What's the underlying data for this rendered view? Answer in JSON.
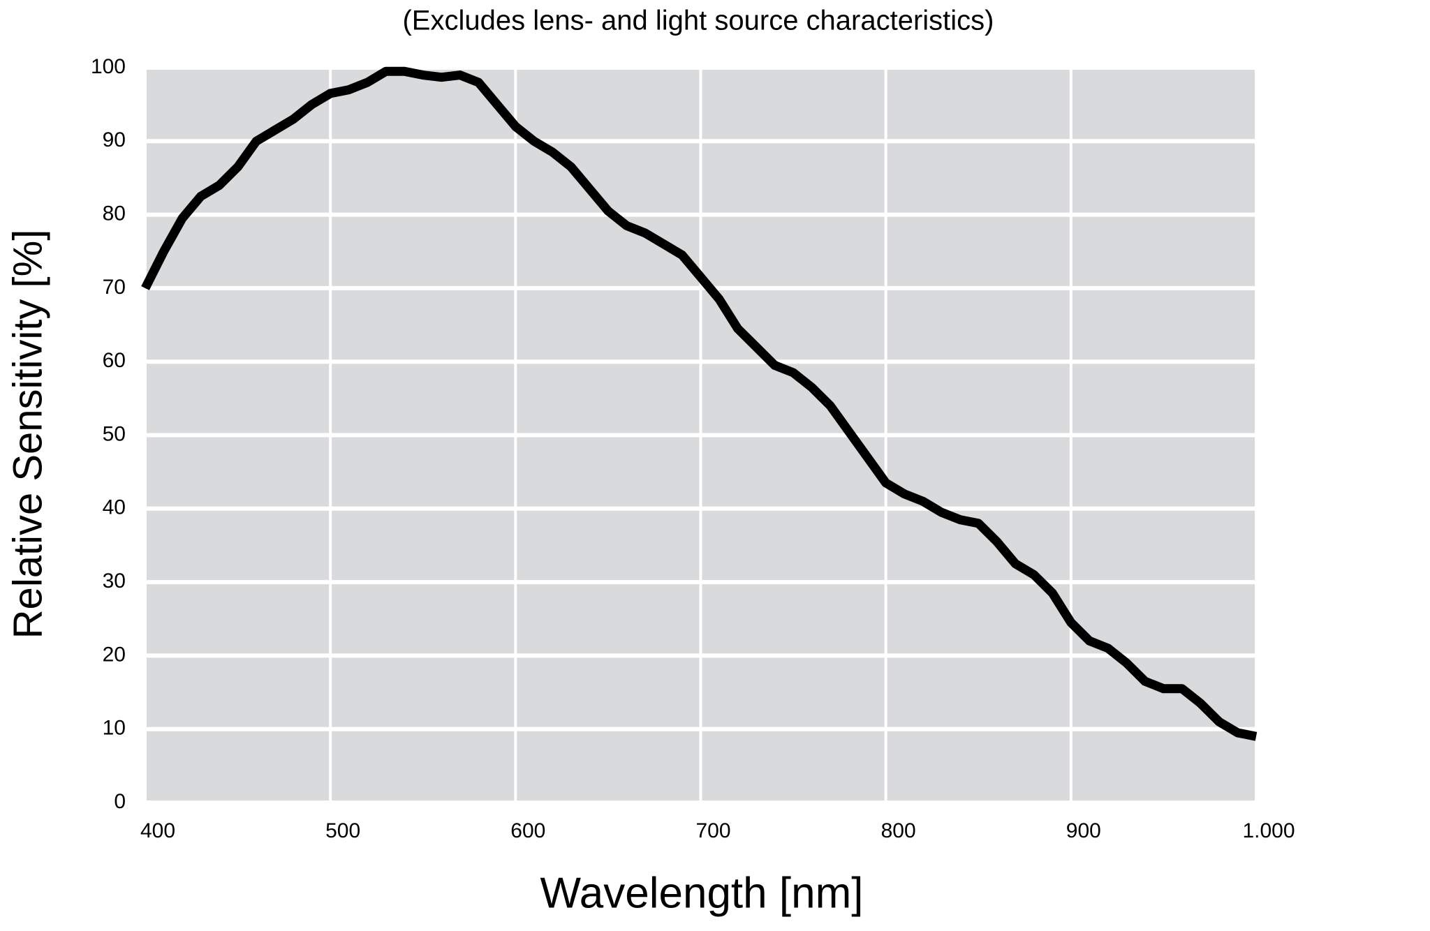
{
  "chart_data": {
    "type": "line",
    "title": "(Excludes lens- and light source characteristics)",
    "x_label": "Wavelength [nm]",
    "y_label": "Relative Sensitivity [%]",
    "x": [
      400,
      410,
      420,
      430,
      440,
      450,
      460,
      470,
      480,
      490,
      500,
      510,
      520,
      530,
      540,
      550,
      560,
      570,
      580,
      590,
      600,
      610,
      620,
      630,
      640,
      650,
      660,
      670,
      680,
      690,
      700,
      710,
      720,
      730,
      740,
      750,
      760,
      770,
      780,
      790,
      800,
      810,
      820,
      830,
      840,
      850,
      860,
      870,
      880,
      890,
      900,
      910,
      920,
      930,
      940,
      950,
      960,
      970,
      980,
      990,
      1000
    ],
    "series": [
      {
        "color": "#000000",
        "values": [
          70,
          75,
          79.5,
          82.5,
          84,
          86.5,
          90,
          91.5,
          93,
          95,
          96.5,
          97,
          98,
          99.5,
          99.5,
          99,
          98.7,
          99,
          98,
          95,
          92,
          90,
          88.5,
          86.5,
          83.5,
          80.5,
          78.5,
          77.5,
          76,
          74.5,
          71.5,
          68.5,
          64.5,
          62,
          59.5,
          58.5,
          56.5,
          54,
          50.5,
          47,
          43.5,
          42,
          41,
          39.5,
          38.5,
          38,
          35.5,
          32.5,
          31,
          28.5,
          24.5,
          22,
          21,
          19,
          16.5,
          15.5,
          15.5,
          13.5,
          11,
          9.5,
          9
        ]
      }
    ],
    "xlim": [
      400,
      1000
    ],
    "ylim": [
      0,
      100
    ],
    "xticks": [
      400,
      500,
      600,
      700,
      800,
      900,
      {
        "value": 1000,
        "label": "1.000"
      }
    ],
    "yticks": [
      0,
      10,
      20,
      30,
      40,
      50,
      60,
      70,
      80,
      90,
      100
    ],
    "grid": true,
    "plot_background": "#d9dadc"
  }
}
